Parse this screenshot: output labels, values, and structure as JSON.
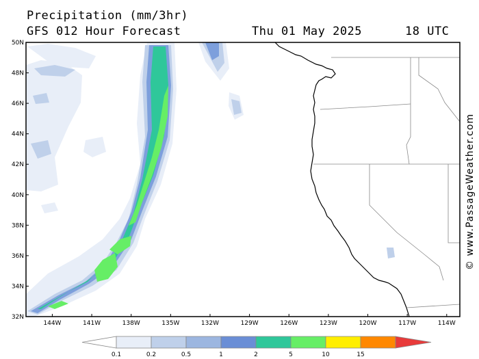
{
  "header": {
    "title": "Precipitation (mm/3hr)",
    "subtitle": "GFS 012 Hour Forecast",
    "date": "Thu 01 May 2025",
    "time": "18 UTC"
  },
  "credit": "© www.PassageWeather.com",
  "map": {
    "lat_range": [
      32,
      50
    ],
    "lon_range": [
      -146,
      -113
    ],
    "lat_ticks": [
      "32N",
      "34N",
      "36N",
      "38N",
      "40N",
      "42N",
      "44N",
      "46N",
      "48N",
      "50N"
    ],
    "lon_ticks": [
      "144W",
      "141W",
      "138W",
      "135W",
      "132W",
      "129W",
      "126W",
      "123W",
      "120W",
      "117W",
      "114W"
    ]
  },
  "legend": {
    "labels": [
      "0.1",
      "0.2",
      "0.5",
      "1",
      "2",
      "5",
      "10",
      "15"
    ],
    "colors": [
      "#ffffff",
      "#e8eef8",
      "#bfd0ea",
      "#9cb6e0",
      "#6a8ed6",
      "#2fc79a",
      "#66ee66",
      "#ffee00",
      "#ff8800",
      "#e83a3a"
    ]
  }
}
